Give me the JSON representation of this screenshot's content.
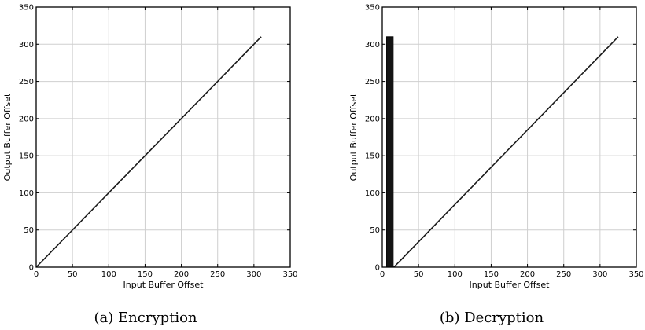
{
  "chart_data": [
    {
      "type": "line",
      "caption": "(a) Encryption",
      "xlabel": "Input Buffer Offset",
      "ylabel": "Output Buffer Offset",
      "xlim": [
        0,
        350
      ],
      "ylim": [
        0,
        350
      ],
      "xticks": [
        0,
        50,
        100,
        150,
        200,
        250,
        300,
        350
      ],
      "yticks": [
        0,
        50,
        100,
        150,
        200,
        250,
        300,
        350
      ],
      "grid": true,
      "series": [
        {
          "x": [
            0,
            310
          ],
          "y": [
            0,
            310
          ]
        }
      ],
      "bars": []
    },
    {
      "type": "line",
      "caption": "(b) Decryption",
      "xlabel": "Input Buffer Offset",
      "ylabel": "Output Buffer Offset",
      "xlim": [
        0,
        350
      ],
      "ylim": [
        0,
        350
      ],
      "xticks": [
        0,
        50,
        100,
        150,
        200,
        250,
        300,
        350
      ],
      "yticks": [
        0,
        50,
        100,
        150,
        200,
        250,
        300,
        350
      ],
      "grid": true,
      "series": [
        {
          "x": [
            16,
            325
          ],
          "y": [
            0,
            310
          ]
        }
      ],
      "bars": [
        {
          "x0": 6,
          "x1": 15,
          "y0": 0,
          "y1": 310
        }
      ]
    }
  ]
}
